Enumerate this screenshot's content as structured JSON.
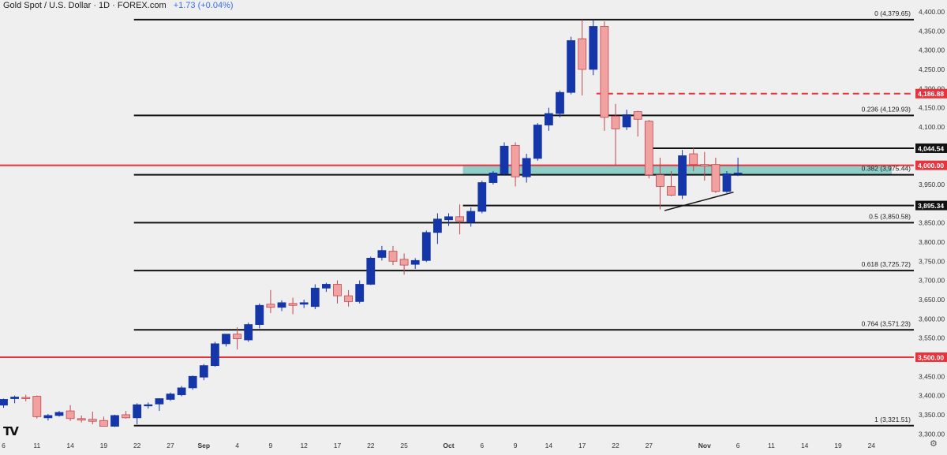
{
  "header": {
    "title": "Gold Spot / U.S. Dollar · 1D · FOREX.com",
    "change": "+1.73 (+0.04%)"
  },
  "logo_text": "TV",
  "colors": {
    "background": "#efefef",
    "bull": "#1536a8",
    "bear": "#f2a1a1",
    "bear_border": "#c0464e",
    "fib_line": "#111111",
    "key_level": "#e8323c",
    "zone": "#7cc8bf"
  },
  "chart_data": {
    "type": "candlestick",
    "title": "Gold Spot / U.S. Dollar · 1D · FOREX.com",
    "ylim": [
      3280,
      4400
    ],
    "y_ticks": [
      3300,
      3350,
      3400,
      3450,
      3500,
      3550,
      3600,
      3650,
      3700,
      3750,
      3800,
      3850,
      3900,
      3950,
      4000,
      4050,
      4100,
      4150,
      4200,
      4250,
      4300,
      4350,
      4400
    ],
    "y_tick_labels": [
      "3,300.00",
      "3,350.00",
      "3,400.00",
      "3,450.00",
      "3,500.00",
      "3,550.00",
      "3,600.00",
      "3,650.00",
      "3,700.00",
      "3,750.00",
      "3,800.00",
      "3,850.00",
      "3,900.00",
      "3,950.00",
      "4,000.00",
      "4,050.00",
      "4,100.00",
      "4,150.00",
      "4,200.00",
      "4,250.00",
      "4,300.00",
      "4,350.00",
      "4,400.00"
    ],
    "x_ticks": [
      {
        "label": "6",
        "index": 0
      },
      {
        "label": "11",
        "index": 3
      },
      {
        "label": "14",
        "index": 6
      },
      {
        "label": "19",
        "index": 9
      },
      {
        "label": "22",
        "index": 12
      },
      {
        "label": "27",
        "index": 15
      },
      {
        "label": "Sep",
        "index": 18
      },
      {
        "label": "4",
        "index": 21
      },
      {
        "label": "9",
        "index": 24
      },
      {
        "label": "12",
        "index": 27
      },
      {
        "label": "17",
        "index": 30
      },
      {
        "label": "22",
        "index": 33
      },
      {
        "label": "25",
        "index": 36
      },
      {
        "label": "Oct",
        "index": 40
      },
      {
        "label": "6",
        "index": 43
      },
      {
        "label": "9",
        "index": 46
      },
      {
        "label": "14",
        "index": 49
      },
      {
        "label": "17",
        "index": 52
      },
      {
        "label": "22",
        "index": 55
      },
      {
        "label": "27",
        "index": 58
      },
      {
        "label": "Nov",
        "index": 63
      },
      {
        "label": "6",
        "index": 66
      },
      {
        "label": "11",
        "index": 69
      },
      {
        "label": "14",
        "index": 72
      },
      {
        "label": "19",
        "index": 75
      },
      {
        "label": "24",
        "index": 78
      }
    ],
    "candles": [
      {
        "o": 3375,
        "h": 3392,
        "l": 3368,
        "c": 3390
      },
      {
        "o": 3392,
        "h": 3400,
        "l": 3380,
        "c": 3396
      },
      {
        "o": 3395,
        "h": 3402,
        "l": 3385,
        "c": 3392
      },
      {
        "o": 3398,
        "h": 3400,
        "l": 3340,
        "c": 3345
      },
      {
        "o": 3342,
        "h": 3352,
        "l": 3335,
        "c": 3348
      },
      {
        "o": 3348,
        "h": 3360,
        "l": 3345,
        "c": 3356
      },
      {
        "o": 3360,
        "h": 3375,
        "l": 3334,
        "c": 3340
      },
      {
        "o": 3340,
        "h": 3348,
        "l": 3330,
        "c": 3336
      },
      {
        "o": 3338,
        "h": 3358,
        "l": 3325,
        "c": 3333
      },
      {
        "o": 3335,
        "h": 3345,
        "l": 3320,
        "c": 3320
      },
      {
        "o": 3320,
        "h": 3350,
        "l": 3318,
        "c": 3348
      },
      {
        "o": 3350,
        "h": 3360,
        "l": 3340,
        "c": 3342
      },
      {
        "o": 3342,
        "h": 3380,
        "l": 3325,
        "c": 3376
      },
      {
        "o": 3374,
        "h": 3382,
        "l": 3366,
        "c": 3376
      },
      {
        "o": 3378,
        "h": 3393,
        "l": 3360,
        "c": 3392
      },
      {
        "o": 3390,
        "h": 3408,
        "l": 3386,
        "c": 3404
      },
      {
        "o": 3402,
        "h": 3425,
        "l": 3398,
        "c": 3420
      },
      {
        "o": 3420,
        "h": 3452,
        "l": 3415,
        "c": 3450
      },
      {
        "o": 3448,
        "h": 3482,
        "l": 3440,
        "c": 3478
      },
      {
        "o": 3478,
        "h": 3540,
        "l": 3475,
        "c": 3535
      },
      {
        "o": 3535,
        "h": 3560,
        "l": 3528,
        "c": 3560
      },
      {
        "o": 3560,
        "h": 3578,
        "l": 3520,
        "c": 3548
      },
      {
        "o": 3545,
        "h": 3590,
        "l": 3540,
        "c": 3585
      },
      {
        "o": 3585,
        "h": 3640,
        "l": 3575,
        "c": 3635
      },
      {
        "o": 3638,
        "h": 3675,
        "l": 3615,
        "c": 3630
      },
      {
        "o": 3630,
        "h": 3648,
        "l": 3620,
        "c": 3642
      },
      {
        "o": 3640,
        "h": 3655,
        "l": 3612,
        "c": 3635
      },
      {
        "o": 3638,
        "h": 3650,
        "l": 3628,
        "c": 3642
      },
      {
        "o": 3632,
        "h": 3690,
        "l": 3625,
        "c": 3680
      },
      {
        "o": 3680,
        "h": 3694,
        "l": 3670,
        "c": 3690
      },
      {
        "o": 3690,
        "h": 3700,
        "l": 3640,
        "c": 3660
      },
      {
        "o": 3660,
        "h": 3675,
        "l": 3632,
        "c": 3645
      },
      {
        "o": 3645,
        "h": 3700,
        "l": 3640,
        "c": 3690
      },
      {
        "o": 3690,
        "h": 3762,
        "l": 3688,
        "c": 3758
      },
      {
        "o": 3760,
        "h": 3790,
        "l": 3752,
        "c": 3778
      },
      {
        "o": 3776,
        "h": 3790,
        "l": 3740,
        "c": 3750
      },
      {
        "o": 3755,
        "h": 3770,
        "l": 3715,
        "c": 3740
      },
      {
        "o": 3742,
        "h": 3758,
        "l": 3730,
        "c": 3752
      },
      {
        "o": 3752,
        "h": 3830,
        "l": 3748,
        "c": 3825
      },
      {
        "o": 3825,
        "h": 3875,
        "l": 3795,
        "c": 3860
      },
      {
        "o": 3858,
        "h": 3875,
        "l": 3842,
        "c": 3866
      },
      {
        "o": 3866,
        "h": 3898,
        "l": 3820,
        "c": 3855
      },
      {
        "o": 3852,
        "h": 3890,
        "l": 3840,
        "c": 3880
      },
      {
        "o": 3880,
        "h": 3960,
        "l": 3875,
        "c": 3955
      },
      {
        "o": 3955,
        "h": 3985,
        "l": 3950,
        "c": 3980
      },
      {
        "o": 3978,
        "h": 4060,
        "l": 3975,
        "c": 4050
      },
      {
        "o": 4052,
        "h": 4060,
        "l": 3945,
        "c": 3970
      },
      {
        "o": 3970,
        "h": 4030,
        "l": 3955,
        "c": 4018
      },
      {
        "o": 4018,
        "h": 4110,
        "l": 4012,
        "c": 4105
      },
      {
        "o": 4105,
        "h": 4150,
        "l": 4090,
        "c": 4135
      },
      {
        "o": 4135,
        "h": 4195,
        "l": 4125,
        "c": 4190
      },
      {
        "o": 4190,
        "h": 4335,
        "l": 4185,
        "c": 4325
      },
      {
        "o": 4330,
        "h": 4380,
        "l": 4182,
        "c": 4250
      },
      {
        "o": 4250,
        "h": 4380,
        "l": 4235,
        "c": 4362
      },
      {
        "o": 4362,
        "h": 4375,
        "l": 4090,
        "c": 4125
      },
      {
        "o": 4128,
        "h": 4160,
        "l": 3998,
        "c": 4095
      },
      {
        "o": 4100,
        "h": 4145,
        "l": 4092,
        "c": 4132
      },
      {
        "o": 4140,
        "h": 4142,
        "l": 4075,
        "c": 4120
      },
      {
        "o": 4115,
        "h": 4118,
        "l": 3966,
        "c": 3975
      },
      {
        "o": 3975,
        "h": 4020,
        "l": 3885,
        "c": 3945
      },
      {
        "o": 3945,
        "h": 3985,
        "l": 3920,
        "c": 3922
      },
      {
        "o": 3922,
        "h": 4040,
        "l": 3912,
        "c": 4025
      },
      {
        "o": 4030,
        "h": 4045,
        "l": 3985,
        "c": 4002
      },
      {
        "o": 4002,
        "h": 4035,
        "l": 3960,
        "c": 3998
      },
      {
        "o": 4002,
        "h": 4020,
        "l": 3928,
        "c": 3932
      },
      {
        "o": 3932,
        "h": 3985,
        "l": 3928,
        "c": 3978
      },
      {
        "o": 3978,
        "h": 4020,
        "l": 3972,
        "c": 3980
      }
    ],
    "fib_levels": [
      {
        "label": "0 (4,379.65)",
        "value": 4379.65,
        "start": 12
      },
      {
        "label": "0.236 (4,129.93)",
        "value": 4129.93,
        "start": 12
      },
      {
        "label": "0.382 (3,975.44)",
        "value": 3975.44,
        "start": 12
      },
      {
        "label": "0.5 (3,850.58)",
        "value": 3850.58,
        "start": 12
      },
      {
        "label": "0.618 (3,725.72)",
        "value": 3725.72,
        "start": 12
      },
      {
        "label": "0.764 (3,571.23)",
        "value": 3571.23,
        "start": 12
      },
      {
        "label": "1 (3,321.51)",
        "value": 3321.51,
        "start": 12
      }
    ],
    "horizontal_levels": [
      {
        "value": 4186.88,
        "label": "4,186.88",
        "style": "dashed-red",
        "start": 53
      },
      {
        "value": 4044.54,
        "label": "4,044.54",
        "style": "solid-black",
        "start": 58
      },
      {
        "value": 4000.0,
        "label": "4,000.00",
        "style": "solid-red",
        "start": -1
      },
      {
        "value": 3895.34,
        "label": "3,895.34",
        "style": "solid-black",
        "start": 41
      },
      {
        "value": 3500.0,
        "label": "3,500.00",
        "style": "solid-red",
        "start": -1
      }
    ],
    "zone": {
      "from": 3975.44,
      "to": 4000.0,
      "start": 41
    },
    "trendline": {
      "from_index": 59.4,
      "from_value": 3882,
      "to_index": 65.6,
      "to_value": 3930
    }
  }
}
